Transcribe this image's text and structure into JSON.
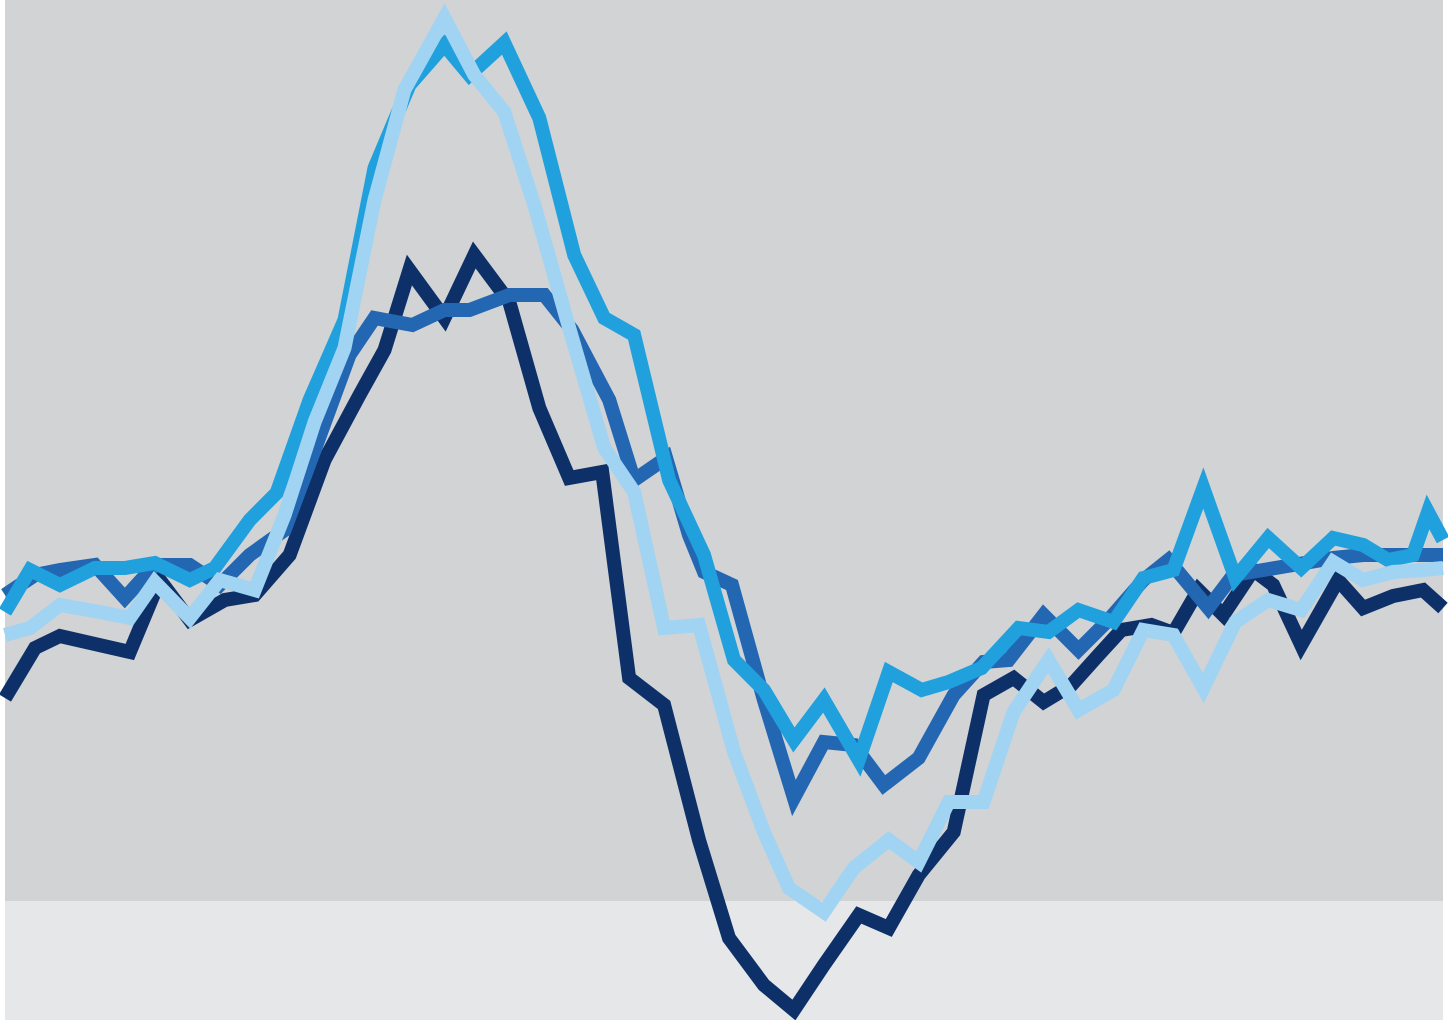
{
  "chart_data": {
    "type": "line",
    "title": "",
    "xlabel": "",
    "ylabel": "",
    "grid": false,
    "legend": "none",
    "xlim": [
      0,
      1440
    ],
    "ylim": [
      -1020,
      0
    ],
    "background": {
      "upper_band_color": "#d1d3d5",
      "lower_band_color": "#e6e7e8",
      "band_boundary_y": -901
    },
    "series": [
      {
        "color": "#0e3068",
        "points": [
          [
            0,
            -698
          ],
          [
            30,
            -648
          ],
          [
            55,
            -636
          ],
          [
            125,
            -652
          ],
          [
            155,
            -580
          ],
          [
            185,
            -620
          ],
          [
            220,
            -600
          ],
          [
            250,
            -595
          ],
          [
            285,
            -555
          ],
          [
            320,
            -460
          ],
          [
            355,
            -395
          ],
          [
            380,
            -350
          ],
          [
            405,
            -270
          ],
          [
            440,
            -318
          ],
          [
            470,
            -255
          ],
          [
            505,
            -302
          ],
          [
            535,
            -408
          ],
          [
            565,
            -478
          ],
          [
            598,
            -472
          ],
          [
            625,
            -678
          ],
          [
            660,
            -705
          ],
          [
            695,
            -840
          ],
          [
            725,
            -938
          ],
          [
            760,
            -985
          ],
          [
            790,
            -1010
          ],
          [
            820,
            -965
          ],
          [
            855,
            -915
          ],
          [
            885,
            -928
          ],
          [
            915,
            -875
          ],
          [
            950,
            -832
          ],
          [
            980,
            -695
          ],
          [
            1010,
            -678
          ],
          [
            1040,
            -702
          ],
          [
            1068,
            -685
          ],
          [
            1095,
            -655
          ],
          [
            1118,
            -630
          ],
          [
            1148,
            -625
          ],
          [
            1170,
            -633
          ],
          [
            1195,
            -590
          ],
          [
            1220,
            -615
          ],
          [
            1250,
            -570
          ],
          [
            1270,
            -585
          ],
          [
            1298,
            -645
          ],
          [
            1335,
            -580
          ],
          [
            1360,
            -608
          ],
          [
            1390,
            -596
          ],
          [
            1420,
            -590
          ],
          [
            1440,
            -608
          ]
        ]
      },
      {
        "color": "#2366b2",
        "points": [
          [
            0,
            -595
          ],
          [
            30,
            -575
          ],
          [
            55,
            -570
          ],
          [
            90,
            -565
          ],
          [
            120,
            -598
          ],
          [
            150,
            -565
          ],
          [
            185,
            -565
          ],
          [
            215,
            -585
          ],
          [
            245,
            -555
          ],
          [
            280,
            -530
          ],
          [
            310,
            -450
          ],
          [
            345,
            -355
          ],
          [
            370,
            -318
          ],
          [
            408,
            -325
          ],
          [
            440,
            -310
          ],
          [
            465,
            -310
          ],
          [
            505,
            -295
          ],
          [
            540,
            -295
          ],
          [
            568,
            -330
          ],
          [
            605,
            -400
          ],
          [
            630,
            -480
          ],
          [
            662,
            -458
          ],
          [
            685,
            -535
          ],
          [
            700,
            -572
          ],
          [
            728,
            -585
          ],
          [
            760,
            -700
          ],
          [
            790,
            -798
          ],
          [
            820,
            -742
          ],
          [
            850,
            -745
          ],
          [
            880,
            -785
          ],
          [
            915,
            -758
          ],
          [
            950,
            -695
          ],
          [
            980,
            -662
          ],
          [
            1005,
            -660
          ],
          [
            1040,
            -615
          ],
          [
            1075,
            -650
          ],
          [
            1105,
            -620
          ],
          [
            1140,
            -580
          ],
          [
            1165,
            -560
          ],
          [
            1205,
            -608
          ],
          [
            1230,
            -575
          ],
          [
            1260,
            -570
          ],
          [
            1290,
            -565
          ],
          [
            1330,
            -558
          ],
          [
            1360,
            -555
          ],
          [
            1400,
            -555
          ],
          [
            1440,
            -555
          ]
        ]
      },
      {
        "color": "#20a0dc",
        "points": [
          [
            0,
            -612
          ],
          [
            25,
            -570
          ],
          [
            55,
            -585
          ],
          [
            90,
            -568
          ],
          [
            120,
            -568
          ],
          [
            150,
            -563
          ],
          [
            185,
            -580
          ],
          [
            210,
            -568
          ],
          [
            245,
            -520
          ],
          [
            272,
            -493
          ],
          [
            305,
            -400
          ],
          [
            340,
            -320
          ],
          [
            370,
            -168
          ],
          [
            405,
            -85
          ],
          [
            440,
            -45
          ],
          [
            465,
            -75
          ],
          [
            500,
            -43
          ],
          [
            535,
            -118
          ],
          [
            570,
            -255
          ],
          [
            600,
            -318
          ],
          [
            630,
            -335
          ],
          [
            665,
            -480
          ],
          [
            700,
            -555
          ],
          [
            730,
            -660
          ],
          [
            760,
            -690
          ],
          [
            790,
            -740
          ],
          [
            820,
            -700
          ],
          [
            855,
            -760
          ],
          [
            885,
            -672
          ],
          [
            918,
            -690
          ],
          [
            945,
            -682
          ],
          [
            978,
            -668
          ],
          [
            1015,
            -628
          ],
          [
            1045,
            -632
          ],
          [
            1075,
            -610
          ],
          [
            1110,
            -622
          ],
          [
            1140,
            -578
          ],
          [
            1170,
            -570
          ],
          [
            1200,
            -488
          ],
          [
            1232,
            -578
          ],
          [
            1265,
            -538
          ],
          [
            1298,
            -568
          ],
          [
            1330,
            -538
          ],
          [
            1360,
            -545
          ],
          [
            1385,
            -560
          ],
          [
            1410,
            -555
          ],
          [
            1425,
            -512
          ],
          [
            1440,
            -540
          ]
        ]
      },
      {
        "color": "#a0d4f2",
        "points": [
          [
            0,
            -635
          ],
          [
            25,
            -628
          ],
          [
            55,
            -605
          ],
          [
            95,
            -612
          ],
          [
            125,
            -618
          ],
          [
            150,
            -582
          ],
          [
            185,
            -618
          ],
          [
            215,
            -580
          ],
          [
            250,
            -590
          ],
          [
            280,
            -515
          ],
          [
            310,
            -422
          ],
          [
            340,
            -348
          ],
          [
            370,
            -200
          ],
          [
            400,
            -90
          ],
          [
            440,
            -18
          ],
          [
            470,
            -75
          ],
          [
            500,
            -112
          ],
          [
            530,
            -205
          ],
          [
            565,
            -328
          ],
          [
            600,
            -448
          ],
          [
            630,
            -492
          ],
          [
            660,
            -628
          ],
          [
            695,
            -625
          ],
          [
            730,
            -752
          ],
          [
            760,
            -832
          ],
          [
            785,
            -888
          ],
          [
            820,
            -912
          ],
          [
            850,
            -868
          ],
          [
            885,
            -840
          ],
          [
            915,
            -862
          ],
          [
            945,
            -802
          ],
          [
            980,
            -802
          ],
          [
            1010,
            -712
          ],
          [
            1045,
            -660
          ],
          [
            1075,
            -710
          ],
          [
            1110,
            -690
          ],
          [
            1140,
            -630
          ],
          [
            1170,
            -635
          ],
          [
            1200,
            -688
          ],
          [
            1232,
            -622
          ],
          [
            1265,
            -600
          ],
          [
            1298,
            -610
          ],
          [
            1330,
            -562
          ],
          [
            1360,
            -580
          ],
          [
            1390,
            -572
          ],
          [
            1420,
            -570
          ],
          [
            1440,
            -568
          ]
        ]
      }
    ]
  }
}
